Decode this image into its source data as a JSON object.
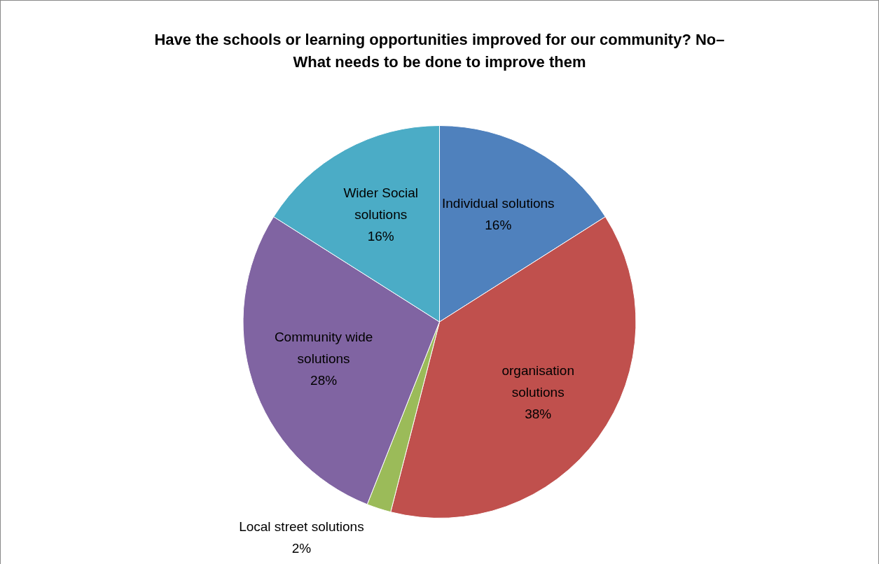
{
  "chart_data": {
    "type": "pie",
    "title": "Have the schools or learning opportunities improved for our community? No–What needs to be done to improve them",
    "categories": [
      "Individual solutions",
      "organisation solutions",
      "Local street solutions",
      "Community wide solutions",
      "Wider Social solutions"
    ],
    "values": [
      16,
      38,
      2,
      28,
      16
    ],
    "colors": [
      "#4f81bd",
      "#c0504d",
      "#9bbb59",
      "#8064a2",
      "#4bacc6"
    ],
    "value_labels": [
      "16%",
      "38%",
      "2%",
      "28%",
      "16%"
    ],
    "legend": false
  }
}
